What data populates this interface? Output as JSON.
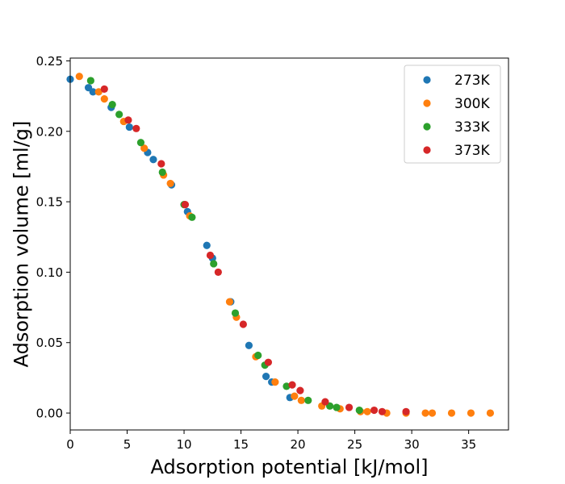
{
  "chart_data": {
    "type": "scatter",
    "xlabel": "Adsorption potential [kJ/mol]",
    "ylabel": "Adsorption volume [ml/g]",
    "xlim": [
      0,
      38.5
    ],
    "ylim": [
      -0.012,
      0.252
    ],
    "xticks": [
      "0",
      "5",
      "10",
      "15",
      "20",
      "25",
      "30",
      "35"
    ],
    "yticks": [
      "0.00",
      "0.05",
      "0.10",
      "0.15",
      "0.20",
      "0.25"
    ],
    "grid": false,
    "legend_position": "top-right",
    "series": [
      {
        "name": "273K",
        "color": "#1f77b4",
        "points": [
          [
            0.0,
            0.237
          ],
          [
            1.6,
            0.231
          ],
          [
            2.0,
            0.228
          ],
          [
            3.6,
            0.217
          ],
          [
            5.2,
            0.203
          ],
          [
            6.8,
            0.185
          ],
          [
            7.3,
            0.18
          ],
          [
            8.9,
            0.162
          ],
          [
            10.3,
            0.143
          ],
          [
            12.0,
            0.119
          ],
          [
            12.5,
            0.11
          ],
          [
            14.1,
            0.079
          ],
          [
            15.7,
            0.048
          ],
          [
            17.2,
            0.026
          ],
          [
            17.7,
            0.022
          ],
          [
            19.3,
            0.011
          ]
        ]
      },
      {
        "name": "300K",
        "color": "#ff7f0e",
        "points": [
          [
            0.8,
            0.239
          ],
          [
            2.5,
            0.228
          ],
          [
            3.0,
            0.223
          ],
          [
            4.7,
            0.207
          ],
          [
            6.5,
            0.188
          ],
          [
            8.2,
            0.169
          ],
          [
            8.8,
            0.163
          ],
          [
            10.5,
            0.14
          ],
          [
            14.0,
            0.079
          ],
          [
            14.6,
            0.068
          ],
          [
            16.3,
            0.04
          ],
          [
            18.0,
            0.022
          ],
          [
            19.7,
            0.012
          ],
          [
            20.3,
            0.009
          ],
          [
            22.1,
            0.005
          ],
          [
            23.7,
            0.003
          ],
          [
            25.5,
            0.001
          ],
          [
            26.1,
            0.001
          ],
          [
            27.8,
            0.0
          ],
          [
            29.5,
            0.0
          ],
          [
            31.2,
            0.0
          ],
          [
            31.8,
            0.0
          ],
          [
            33.5,
            0.0
          ],
          [
            35.2,
            0.0
          ],
          [
            36.9,
            0.0
          ]
        ]
      },
      {
        "name": "333K",
        "color": "#2ca02c",
        "points": [
          [
            1.8,
            0.236
          ],
          [
            3.7,
            0.219
          ],
          [
            4.3,
            0.212
          ],
          [
            6.2,
            0.192
          ],
          [
            8.1,
            0.171
          ],
          [
            10.0,
            0.148
          ],
          [
            10.7,
            0.139
          ],
          [
            12.6,
            0.106
          ],
          [
            14.5,
            0.071
          ],
          [
            16.5,
            0.041
          ],
          [
            17.1,
            0.034
          ],
          [
            19.0,
            0.019
          ],
          [
            20.9,
            0.009
          ],
          [
            22.8,
            0.005
          ],
          [
            23.4,
            0.004
          ],
          [
            25.4,
            0.002
          ]
        ]
      },
      {
        "name": "373K",
        "color": "#d62728",
        "points": [
          [
            3.0,
            0.23
          ],
          [
            5.1,
            0.208
          ],
          [
            5.8,
            0.202
          ],
          [
            8.0,
            0.177
          ],
          [
            10.1,
            0.148
          ],
          [
            12.3,
            0.112
          ],
          [
            13.0,
            0.1
          ],
          [
            15.2,
            0.063
          ],
          [
            17.4,
            0.036
          ],
          [
            19.5,
            0.02
          ],
          [
            20.2,
            0.016
          ],
          [
            22.4,
            0.008
          ],
          [
            24.5,
            0.004
          ],
          [
            26.7,
            0.002
          ],
          [
            27.4,
            0.001
          ],
          [
            29.5,
            0.001
          ]
        ]
      }
    ]
  }
}
